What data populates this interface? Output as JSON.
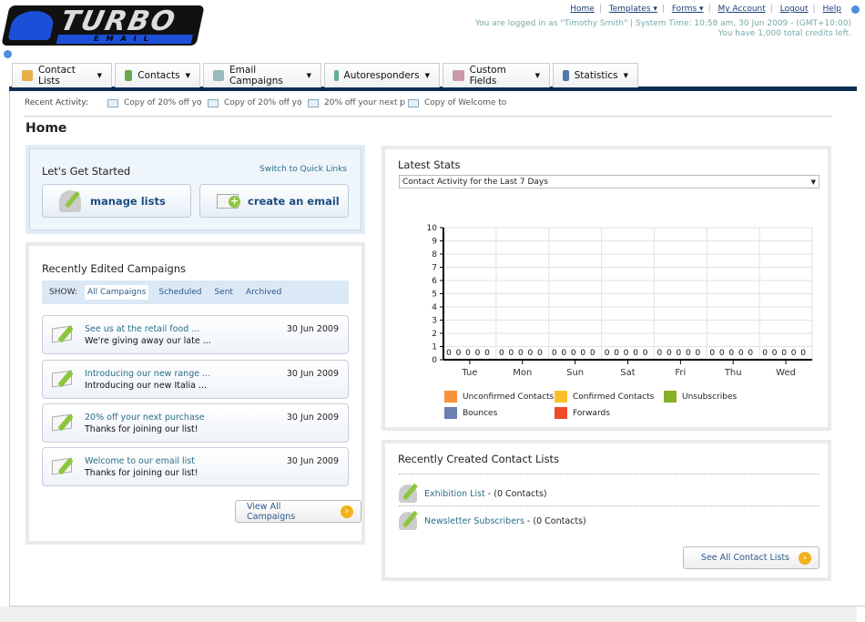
{
  "logo": {
    "text": "TURBO",
    "sub": "EMAIL"
  },
  "toplinks": [
    {
      "label": "Home"
    },
    {
      "label": "Templates ▾"
    },
    {
      "label": "Forms ▾"
    },
    {
      "label": "My Account"
    },
    {
      "label": "Logout"
    },
    {
      "label": "Help"
    }
  ],
  "login_info": "You are logged in as \"Timothy Smith\" | System Time: 10:58 am, 30 Jun 2009 - (GMT+10:00)",
  "credits": "You have 1,000 total credits left.",
  "tabs": [
    {
      "label": "Contact Lists",
      "icon": "contact-lists-icon",
      "color": "#e8b04a"
    },
    {
      "label": "Contacts",
      "icon": "contacts-icon",
      "color": "#6aa84f"
    },
    {
      "label": "Email Campaigns",
      "icon": "email-icon",
      "color": "#9bb"
    },
    {
      "label": "Autoresponders",
      "icon": "autoresponder-icon",
      "color": "#6a9"
    },
    {
      "label": "Custom Fields",
      "icon": "custom-fields-icon",
      "color": "#c9a"
    },
    {
      "label": "Statistics",
      "icon": "statistics-icon",
      "color": "#57a"
    }
  ],
  "recent_activity": {
    "label": "Recent Activity:",
    "items": [
      "Copy of 20% off yo",
      "Copy of 20% off yo",
      "20% off your next p",
      "Copy of Welcome to"
    ]
  },
  "page_title": "Home",
  "get_started": {
    "title": "Let's Get Started",
    "switch_link": "Switch to Quick Links",
    "manage_lists": "manage lists",
    "create_email": "create an email"
  },
  "campaigns": {
    "title": "Recently Edited Campaigns",
    "show_label": "SHOW:",
    "filters": [
      "All Campaigns",
      "Scheduled",
      "Sent",
      "Archived"
    ],
    "items": [
      {
        "title": "See us at the retail food ...",
        "summary": "We're giving away our late ...",
        "date": "30 Jun 2009"
      },
      {
        "title": "Introducing our new range ...",
        "summary": "Introducing our new Italia ...",
        "date": "30 Jun 2009"
      },
      {
        "title": "20% off your next purchase",
        "summary": "Thanks for joining our list!",
        "date": "30 Jun 2009"
      },
      {
        "title": "Welcome to our email list",
        "summary": "Thanks for joining our list!",
        "date": "30 Jun 2009"
      }
    ],
    "view_all": "View All Campaigns"
  },
  "stats": {
    "title": "Latest Stats",
    "select_value": "Contact Activity for the Last 7 Days"
  },
  "chart_data": {
    "type": "bar",
    "categories": [
      "Tue",
      "Mon",
      "Sun",
      "Sat",
      "Fri",
      "Thu",
      "Wed"
    ],
    "ylim": [
      0,
      10
    ],
    "yticks": [
      0,
      1,
      2,
      3,
      4,
      5,
      6,
      7,
      8,
      9,
      10
    ],
    "grid": true,
    "legend_placement": "bottom",
    "series": [
      {
        "name": "Unconfirmed Contacts",
        "color": "#f7923a",
        "values": [
          0,
          0,
          0,
          0,
          0,
          0,
          0
        ]
      },
      {
        "name": "Confirmed Contacts",
        "color": "#fbbf2e",
        "values": [
          0,
          0,
          0,
          0,
          0,
          0,
          0
        ]
      },
      {
        "name": "Unsubscribes",
        "color": "#86b027",
        "values": [
          0,
          0,
          0,
          0,
          0,
          0,
          0
        ]
      },
      {
        "name": "Bounces",
        "color": "#6b7fb0",
        "values": [
          0,
          0,
          0,
          0,
          0,
          0,
          0
        ]
      },
      {
        "name": "Forwards",
        "color": "#ee4c26",
        "values": [
          0,
          0,
          0,
          0,
          0,
          0,
          0
        ]
      }
    ]
  },
  "contact_lists": {
    "title": "Recently Created Contact Lists",
    "items": [
      {
        "name": "Exhibition List",
        "count": " - (0 Contacts)"
      },
      {
        "name": "Newsletter Subscribers",
        "count": " - (0 Contacts)"
      }
    ],
    "see_all": "See All Contact Lists"
  }
}
